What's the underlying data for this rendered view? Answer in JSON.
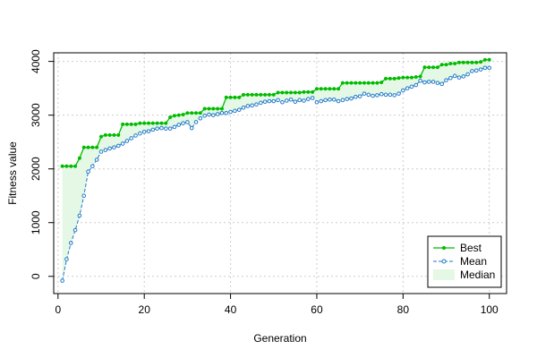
{
  "chart_data": {
    "type": "line",
    "xlabel": "Generation",
    "ylabel": "Fitness value",
    "xlim": [
      -1,
      104
    ],
    "ylim": [
      -320,
      4160
    ],
    "x_ticks": [
      0,
      20,
      40,
      60,
      80,
      100
    ],
    "y_ticks": [
      0,
      1000,
      2000,
      3000,
      4000
    ],
    "grid": true,
    "legend_position": "bottom-right",
    "colors": {
      "best": "#00bb00",
      "mean": "#1f78c8",
      "median_fill": "#e5f8e5"
    },
    "series": [
      {
        "name": "Best",
        "x": [
          1,
          2,
          3,
          4,
          5,
          6,
          7,
          8,
          9,
          10,
          11,
          12,
          13,
          14,
          15,
          16,
          17,
          18,
          19,
          20,
          21,
          22,
          23,
          24,
          25,
          26,
          27,
          28,
          29,
          30,
          31,
          32,
          33,
          34,
          35,
          36,
          37,
          38,
          39,
          40,
          41,
          42,
          43,
          44,
          45,
          46,
          47,
          48,
          49,
          50,
          51,
          52,
          53,
          54,
          55,
          56,
          57,
          58,
          59,
          60,
          61,
          62,
          63,
          64,
          65,
          66,
          67,
          68,
          69,
          70,
          71,
          72,
          73,
          74,
          75,
          76,
          77,
          78,
          79,
          80,
          81,
          82,
          83,
          84,
          85,
          86,
          87,
          88,
          89,
          90,
          91,
          92,
          93,
          94,
          95,
          96,
          97,
          98,
          99,
          100
        ],
        "values": [
          2050,
          2050,
          2050,
          2050,
          2200,
          2400,
          2400,
          2400,
          2400,
          2600,
          2630,
          2630,
          2630,
          2630,
          2830,
          2830,
          2830,
          2830,
          2850,
          2850,
          2850,
          2850,
          2850,
          2850,
          2850,
          2960,
          2990,
          3000,
          3010,
          3040,
          3040,
          3040,
          3040,
          3120,
          3120,
          3120,
          3120,
          3120,
          3330,
          3330,
          3330,
          3330,
          3380,
          3380,
          3380,
          3380,
          3380,
          3380,
          3380,
          3380,
          3420,
          3420,
          3420,
          3420,
          3420,
          3420,
          3430,
          3430,
          3430,
          3490,
          3490,
          3490,
          3490,
          3490,
          3490,
          3600,
          3600,
          3600,
          3600,
          3600,
          3600,
          3600,
          3600,
          3600,
          3610,
          3680,
          3680,
          3680,
          3690,
          3700,
          3700,
          3700,
          3710,
          3720,
          3890,
          3890,
          3890,
          3890,
          3940,
          3940,
          3960,
          3960,
          3980,
          3980,
          3980,
          3980,
          3980,
          3990,
          4030,
          4030
        ]
      },
      {
        "name": "Mean",
        "x": [
          1,
          2,
          3,
          4,
          5,
          6,
          7,
          8,
          9,
          10,
          11,
          12,
          13,
          14,
          15,
          16,
          17,
          18,
          19,
          20,
          21,
          22,
          23,
          24,
          25,
          26,
          27,
          28,
          29,
          30,
          31,
          32,
          33,
          34,
          35,
          36,
          37,
          38,
          39,
          40,
          41,
          42,
          43,
          44,
          45,
          46,
          47,
          48,
          49,
          50,
          51,
          52,
          53,
          54,
          55,
          56,
          57,
          58,
          59,
          60,
          61,
          62,
          63,
          64,
          65,
          66,
          67,
          68,
          69,
          70,
          71,
          72,
          73,
          74,
          75,
          76,
          77,
          78,
          79,
          80,
          81,
          82,
          83,
          84,
          85,
          86,
          87,
          88,
          89,
          90,
          91,
          92,
          93,
          94,
          95,
          96,
          97,
          98,
          99,
          100
        ],
        "values": [
          -80,
          320,
          620,
          860,
          1130,
          1500,
          1950,
          2050,
          2170,
          2320,
          2350,
          2380,
          2400,
          2430,
          2470,
          2520,
          2570,
          2620,
          2660,
          2690,
          2700,
          2730,
          2750,
          2760,
          2750,
          2750,
          2780,
          2820,
          2850,
          2870,
          2760,
          2870,
          2940,
          2990,
          3010,
          3000,
          3020,
          3040,
          3040,
          3060,
          3080,
          3100,
          3140,
          3170,
          3180,
          3200,
          3230,
          3250,
          3260,
          3260,
          3280,
          3240,
          3270,
          3290,
          3250,
          3280,
          3270,
          3300,
          3320,
          3240,
          3260,
          3280,
          3290,
          3290,
          3260,
          3280,
          3300,
          3310,
          3340,
          3350,
          3400,
          3380,
          3360,
          3370,
          3390,
          3380,
          3380,
          3370,
          3400,
          3460,
          3500,
          3530,
          3560,
          3640,
          3610,
          3620,
          3620,
          3600,
          3580,
          3650,
          3690,
          3730,
          3700,
          3720,
          3760,
          3820,
          3830,
          3850,
          3880,
          3880
        ]
      },
      {
        "name": "Median",
        "type": "area",
        "note": "shaded band between Mean and Best"
      }
    ],
    "legend": [
      "Best",
      "Mean",
      "Median"
    ]
  }
}
